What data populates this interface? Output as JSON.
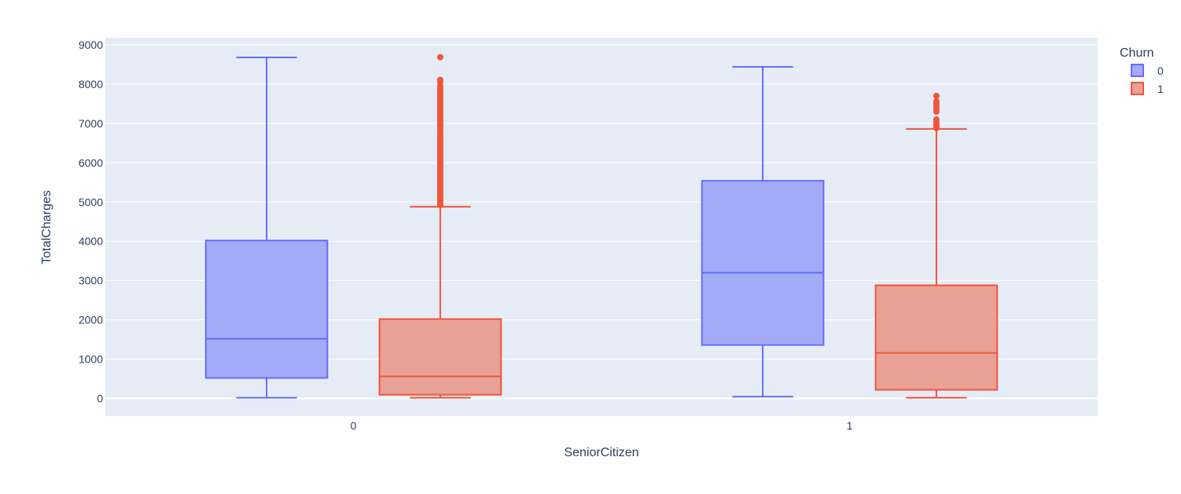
{
  "chart_data": {
    "type": "box",
    "xlabel": "SeniorCitizen",
    "ylabel": "TotalCharges",
    "categories": [
      "0",
      "1"
    ],
    "ylim": [
      -450,
      9180
    ],
    "yticks": [
      0,
      1000,
      2000,
      3000,
      4000,
      5000,
      6000,
      7000,
      8000,
      9000
    ],
    "grid": true,
    "legend": {
      "title": "Churn",
      "position": "top-right"
    },
    "series": [
      {
        "name": "0",
        "color": "#636efa",
        "fill": "#a3aaf7",
        "boxes": [
          {
            "category": "0",
            "min": 18.8,
            "q1": 522,
            "median": 1520,
            "q3": 4020,
            "max": 8680,
            "outliers": []
          },
          {
            "category": "1",
            "min": 45,
            "q1": 1360,
            "median": 3200,
            "q3": 5540,
            "max": 8440,
            "outliers": []
          }
        ]
      },
      {
        "name": "1",
        "color": "#ef553b",
        "fill": "#e9a196",
        "boxes": [
          {
            "category": "0",
            "min": 18.85,
            "q1": 95,
            "median": 560,
            "q3": 2020,
            "max": 4880,
            "outliers": [
              4920,
              4960,
              5000,
              5050,
              5100,
              5150,
              5200,
              5260,
              5320,
              5380,
              5440,
              5500,
              5560,
              5620,
              5680,
              5740,
              5800,
              5860,
              5920,
              5980,
              6040,
              6100,
              6160,
              6220,
              6280,
              6340,
              6400,
              6460,
              6520,
              6580,
              6640,
              6700,
              6780,
              6860,
              6920,
              6980,
              7040,
              7100,
              7160,
              7220,
              7280,
              7340,
              7400,
              7460,
              7520,
              7580,
              7640,
              7700,
              7760,
              7820,
              7880,
              7950,
              8050,
              8110,
              8685
            ]
          },
          {
            "category": "1",
            "min": 19,
            "q1": 220,
            "median": 1160,
            "q3": 2880,
            "max": 6860,
            "outliers": [
              6880,
              6920,
              6960,
              7020,
              7100,
              7300,
              7380,
              7440,
              7500,
              7560,
              7700
            ]
          }
        ]
      }
    ]
  }
}
